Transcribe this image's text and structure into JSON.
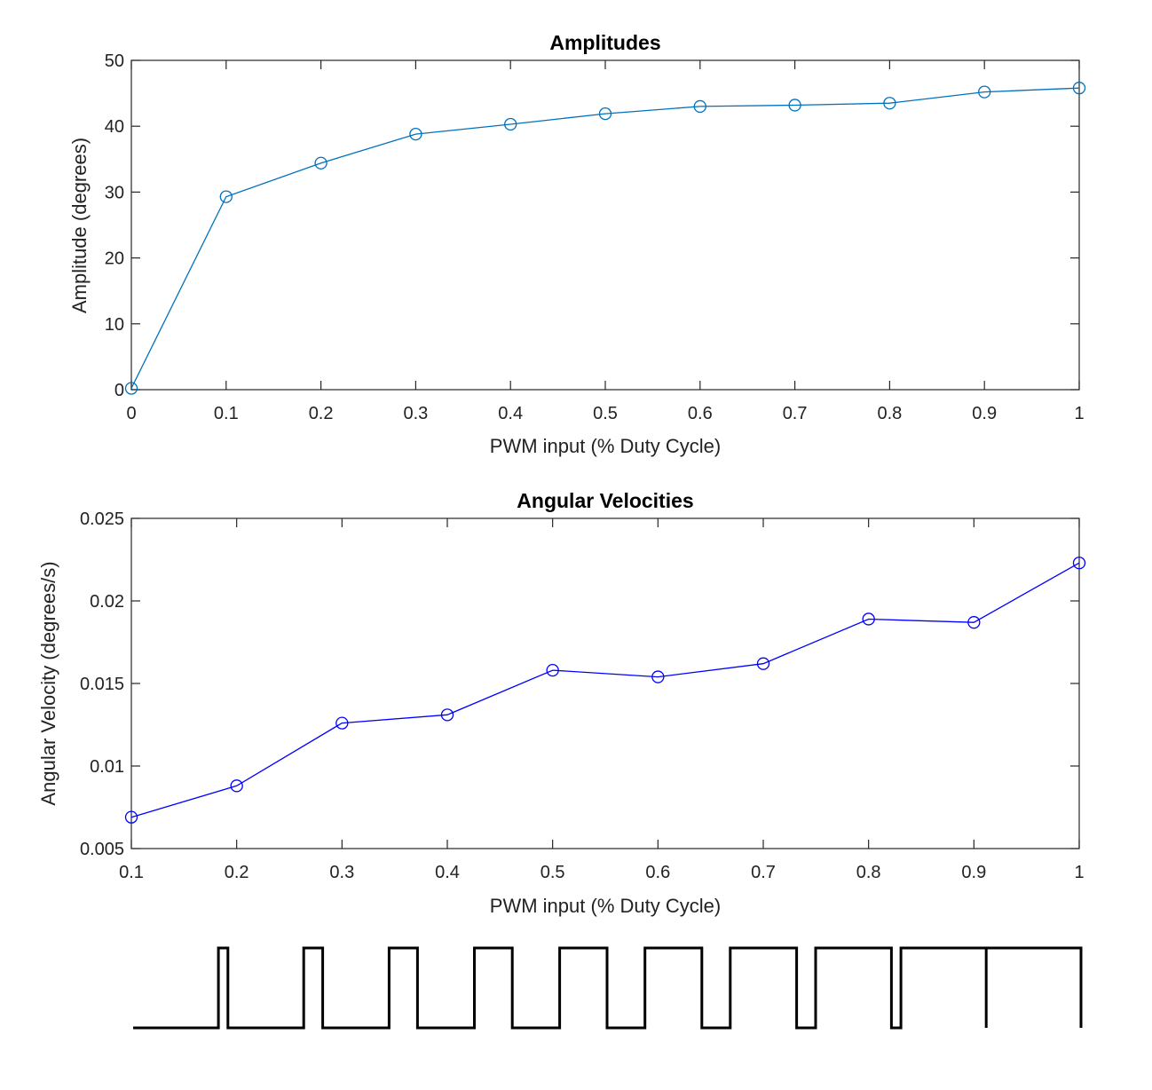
{
  "chart_data": [
    {
      "type": "line",
      "title": "Amplitudes",
      "xlabel": "PWM input (% Duty Cycle)",
      "ylabel": "Amplitude (degrees)",
      "xlim": [
        0,
        1
      ],
      "ylim": [
        0,
        50
      ],
      "xticks": [
        0,
        0.1,
        0.2,
        0.3,
        0.4,
        0.5,
        0.6,
        0.7,
        0.8,
        0.9,
        1
      ],
      "xticklabels": [
        "0",
        "0.1",
        "0.2",
        "0.3",
        "0.4",
        "0.5",
        "0.6",
        "0.7",
        "0.8",
        "0.9",
        "1"
      ],
      "yticks": [
        0,
        10,
        20,
        30,
        40,
        50
      ],
      "yticklabels": [
        "0",
        "10",
        "20",
        "30",
        "40",
        "50"
      ],
      "grid": false,
      "marker": "circle",
      "color": "#0072BD",
      "series": [
        {
          "x": [
            0,
            0.1,
            0.2,
            0.3,
            0.4,
            0.5,
            0.6,
            0.7,
            0.8,
            0.9,
            1
          ],
          "y": [
            0.2,
            29.3,
            34.4,
            38.8,
            40.3,
            41.9,
            43.0,
            43.2,
            43.5,
            45.2,
            45.8
          ]
        }
      ]
    },
    {
      "type": "line",
      "title": "Angular Velocities",
      "xlabel": "PWM input (% Duty Cycle)",
      "ylabel": "Angular Velocity (degrees/s)",
      "xlim": [
        0.1,
        1
      ],
      "ylim": [
        0.005,
        0.025
      ],
      "xticks": [
        0.1,
        0.2,
        0.3,
        0.4,
        0.5,
        0.6,
        0.7,
        0.8,
        0.9,
        1
      ],
      "xticklabels": [
        "0.1",
        "0.2",
        "0.3",
        "0.4",
        "0.5",
        "0.6",
        "0.7",
        "0.8",
        "0.9",
        "1"
      ],
      "yticks": [
        0.005,
        0.01,
        0.015,
        0.02,
        0.025
      ],
      "yticklabels": [
        "0.005",
        "0.01",
        "0.015",
        "0.02",
        "0.025"
      ],
      "grid": false,
      "marker": "circle",
      "color": "#0000FF",
      "series": [
        {
          "x": [
            0.1,
            0.2,
            0.3,
            0.4,
            0.5,
            0.6,
            0.7,
            0.8,
            0.9,
            1
          ],
          "y": [
            0.0069,
            0.0088,
            0.0126,
            0.0131,
            0.0158,
            0.0154,
            0.0162,
            0.0189,
            0.0187,
            0.0223
          ]
        }
      ]
    }
  ],
  "pwm_waveform": {
    "type": "square-wave",
    "color": "#000000",
    "duty_cycles": [
      0.1,
      0.2,
      0.3,
      0.4,
      0.5,
      0.6,
      0.7,
      0.8,
      0.9,
      1.0
    ]
  }
}
